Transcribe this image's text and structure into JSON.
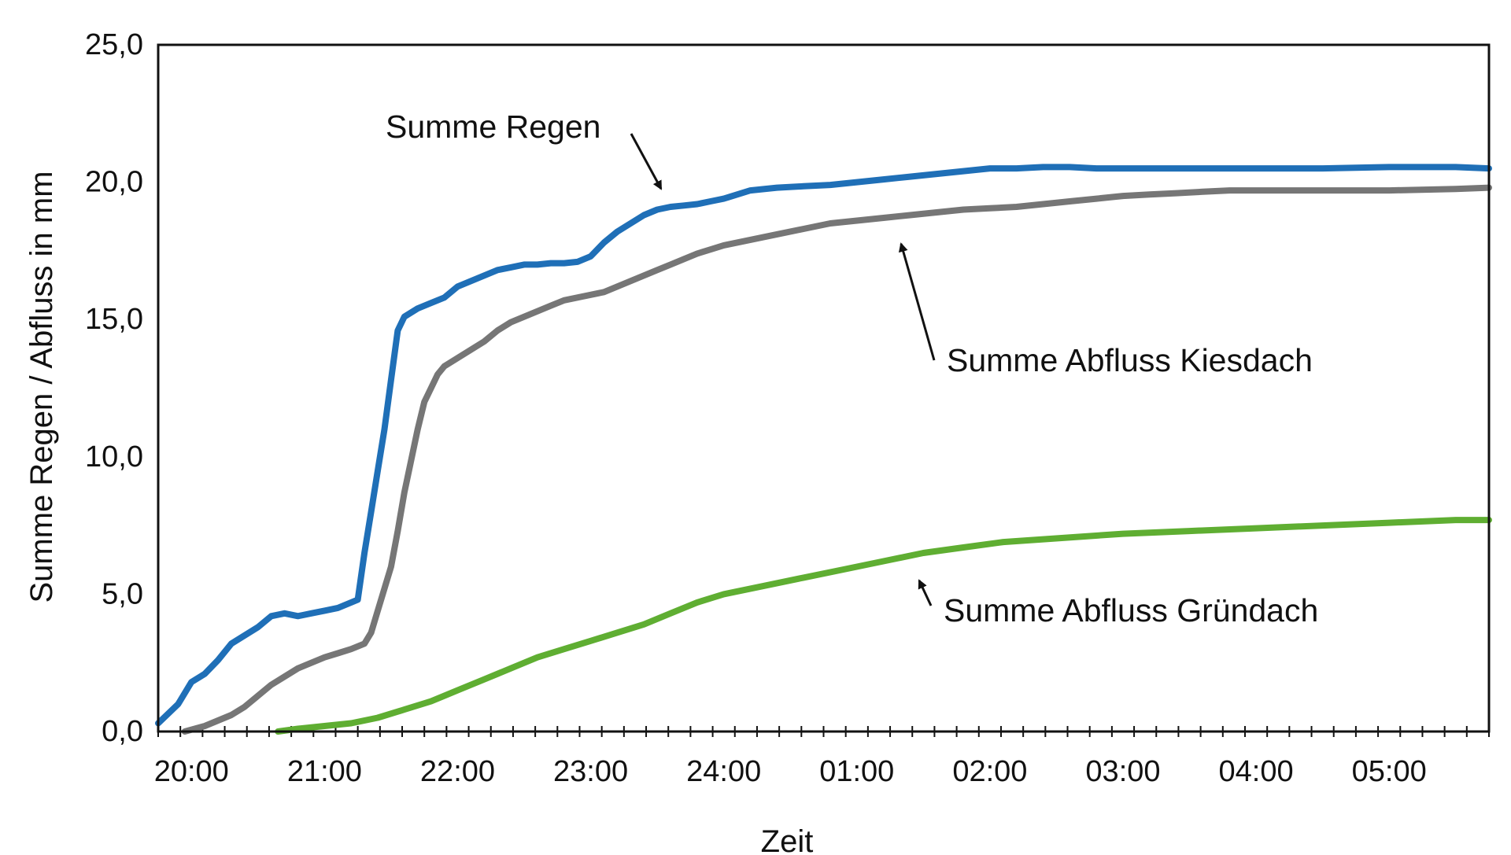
{
  "chart_data": {
    "type": "line",
    "title": "",
    "xlabel": "Zeit",
    "ylabel": "Summe Regen / Abfluss in mm",
    "ylim": [
      0,
      25
    ],
    "xlim": [
      -0.25,
      9.75
    ],
    "y_ticks": [
      "0,0",
      "5,0",
      "10,0",
      "15,0",
      "20,0",
      "25,0"
    ],
    "y_tick_values": [
      0,
      5,
      10,
      15,
      20,
      25
    ],
    "x_ticks": [
      "20:00",
      "21:00",
      "22:00",
      "23:00",
      "24:00",
      "01:00",
      "02:00",
      "03:00",
      "04:00",
      "05:00"
    ],
    "x_tick_values": [
      0,
      1,
      2,
      3,
      4,
      5,
      6,
      7,
      8,
      9
    ],
    "grid": false,
    "colors": {
      "regen": "#1f6fb7",
      "kiesdach": "#767676",
      "gruendach": "#5fae32"
    },
    "series": [
      {
        "name": "Summe Regen",
        "color": "#1f6fb7",
        "x": [
          -0.25,
          -0.1,
          0.0,
          0.1,
          0.2,
          0.3,
          0.4,
          0.5,
          0.6,
          0.7,
          0.8,
          0.9,
          1.0,
          1.1,
          1.2,
          1.25,
          1.3,
          1.35,
          1.4,
          1.45,
          1.5,
          1.55,
          1.6,
          1.7,
          1.8,
          1.9,
          2.0,
          2.1,
          2.2,
          2.3,
          2.4,
          2.5,
          2.6,
          2.7,
          2.8,
          2.9,
          3.0,
          3.1,
          3.2,
          3.3,
          3.4,
          3.5,
          3.6,
          3.7,
          3.8,
          3.9,
          4.0,
          4.2,
          4.4,
          4.6,
          4.8,
          5.0,
          5.2,
          5.4,
          5.6,
          5.8,
          6.0,
          6.2,
          6.4,
          6.6,
          6.8,
          7.0,
          7.5,
          8.0,
          8.5,
          9.0,
          9.5,
          9.75
        ],
        "values": [
          0.3,
          1.0,
          1.8,
          2.1,
          2.6,
          3.2,
          3.5,
          3.8,
          4.2,
          4.3,
          4.2,
          4.3,
          4.4,
          4.5,
          4.7,
          4.8,
          6.5,
          8.0,
          9.5,
          11.0,
          12.8,
          14.6,
          15.1,
          15.4,
          15.6,
          15.8,
          16.2,
          16.4,
          16.6,
          16.8,
          16.9,
          17.0,
          17.0,
          17.05,
          17.05,
          17.1,
          17.3,
          17.8,
          18.2,
          18.5,
          18.8,
          19.0,
          19.1,
          19.15,
          19.2,
          19.3,
          19.4,
          19.7,
          19.8,
          19.85,
          19.9,
          20.0,
          20.1,
          20.2,
          20.3,
          20.4,
          20.5,
          20.5,
          20.55,
          20.55,
          20.5,
          20.5,
          20.5,
          20.5,
          20.5,
          20.55,
          20.55,
          20.5
        ]
      },
      {
        "name": "Summe Abfluss Kiesdach",
        "color": "#767676",
        "x": [
          -0.05,
          0.1,
          0.2,
          0.3,
          0.4,
          0.5,
          0.6,
          0.7,
          0.8,
          0.9,
          1.0,
          1.1,
          1.2,
          1.3,
          1.35,
          1.4,
          1.5,
          1.55,
          1.6,
          1.7,
          1.75,
          1.8,
          1.85,
          1.9,
          2.0,
          2.1,
          2.2,
          2.3,
          2.4,
          2.5,
          2.6,
          2.7,
          2.8,
          2.9,
          3.0,
          3.1,
          3.2,
          3.3,
          3.4,
          3.5,
          3.6,
          3.7,
          3.8,
          3.9,
          4.0,
          4.2,
          4.4,
          4.6,
          4.8,
          5.0,
          5.2,
          5.4,
          5.6,
          5.8,
          6.0,
          6.2,
          6.4,
          6.6,
          6.8,
          7.0,
          7.2,
          7.4,
          7.6,
          7.8,
          8.0,
          8.5,
          9.0,
          9.5,
          9.75
        ],
        "values": [
          0.0,
          0.2,
          0.4,
          0.6,
          0.9,
          1.3,
          1.7,
          2.0,
          2.3,
          2.5,
          2.7,
          2.85,
          3.0,
          3.2,
          3.6,
          4.4,
          6.0,
          7.3,
          8.7,
          11.0,
          12.0,
          12.5,
          13.0,
          13.3,
          13.6,
          13.9,
          14.2,
          14.6,
          14.9,
          15.1,
          15.3,
          15.5,
          15.7,
          15.8,
          15.9,
          16.0,
          16.2,
          16.4,
          16.6,
          16.8,
          17.0,
          17.2,
          17.4,
          17.55,
          17.7,
          17.9,
          18.1,
          18.3,
          18.5,
          18.6,
          18.7,
          18.8,
          18.9,
          19.0,
          19.05,
          19.1,
          19.2,
          19.3,
          19.4,
          19.5,
          19.55,
          19.6,
          19.65,
          19.7,
          19.7,
          19.7,
          19.7,
          19.75,
          19.8
        ]
      },
      {
        "name": "Summe Abfluss Gründach",
        "color": "#5fae32",
        "x": [
          0.65,
          0.8,
          1.0,
          1.2,
          1.4,
          1.6,
          1.8,
          2.0,
          2.2,
          2.4,
          2.6,
          2.8,
          3.0,
          3.2,
          3.4,
          3.6,
          3.8,
          4.0,
          4.3,
          4.6,
          4.9,
          5.2,
          5.5,
          5.8,
          6.1,
          6.4,
          6.7,
          7.0,
          7.5,
          8.0,
          8.5,
          9.0,
          9.5,
          9.75
        ],
        "values": [
          0.0,
          0.1,
          0.2,
          0.3,
          0.5,
          0.8,
          1.1,
          1.5,
          1.9,
          2.3,
          2.7,
          3.0,
          3.3,
          3.6,
          3.9,
          4.3,
          4.7,
          5.0,
          5.3,
          5.6,
          5.9,
          6.2,
          6.5,
          6.7,
          6.9,
          7.0,
          7.1,
          7.2,
          7.3,
          7.4,
          7.5,
          7.6,
          7.7,
          7.7
        ]
      }
    ],
    "annotations": [
      {
        "text": "Summe Regen",
        "arrow_to": {
          "x": 3.65,
          "y": 19.4
        }
      },
      {
        "text": "Summe Abfluss Kiesdach",
        "arrow_to": {
          "x": 5.4,
          "y": 18.0
        }
      },
      {
        "text": "Summe Abfluss Gründach",
        "arrow_to": {
          "x": 5.6,
          "y": 5.5
        }
      }
    ]
  }
}
